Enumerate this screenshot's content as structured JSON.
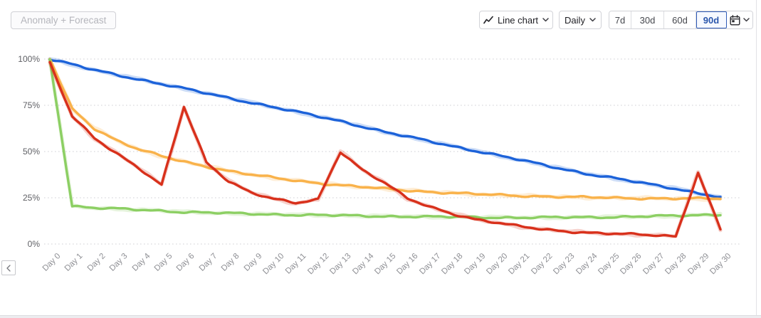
{
  "toolbar": {
    "anomaly_button": "Anomaly + Forecast",
    "chart_type_label": "Line chart",
    "chart_type_icon": "line-chart-icon",
    "granularity_label": "Daily",
    "range_options": [
      "7d",
      "30d",
      "60d",
      "90d"
    ],
    "selected_range": "90d",
    "calendar_icon": "calendar-icon",
    "chevron_icon": "chevron-down-icon"
  },
  "pager": {
    "icon": "chevron-left-icon"
  },
  "colors": {
    "selected_range_text": "#2b57ac",
    "selected_range_border": "#2f5bb7",
    "grid": "#cfcfd4",
    "axis_text": "#8e8f94",
    "y_axis_text": "#5f6065"
  },
  "chart_data": {
    "type": "line",
    "title": "",
    "xlabel": "",
    "ylabel": "",
    "ylim": [
      0,
      100
    ],
    "grid": "horizontal-dotted",
    "legend": "none",
    "style": "hand-drawn-sketch",
    "y_ticks": [
      {
        "value": 100,
        "label": "100%"
      },
      {
        "value": 75,
        "label": "75%"
      },
      {
        "value": 50,
        "label": "50%"
      },
      {
        "value": 25,
        "label": "25%"
      },
      {
        "value": 0,
        "label": "0%"
      }
    ],
    "categories": [
      "Day 0",
      "Day 1",
      "Day 2",
      "Day 3",
      "Day 4",
      "Day 5",
      "Day 6",
      "Day 7",
      "Day 8",
      "Day 9",
      "Day 10",
      "Day 11",
      "Day 12",
      "Day 13",
      "Day 14",
      "Day 15",
      "Day 16",
      "Day 17",
      "Day 18",
      "Day 19",
      "Day 20",
      "Day 21",
      "Day 22",
      "Day 23",
      "Day 24",
      "Day 25",
      "Day 26",
      "Day 27",
      "Day 28",
      "Day 29",
      "Day 30"
    ],
    "series": [
      {
        "name": "blue",
        "color": "#1c62d9",
        "values": [
          100,
          97,
          94,
          91.5,
          89,
          86.5,
          84,
          81.5,
          79,
          76.5,
          74,
          71.5,
          69,
          66.5,
          63.5,
          60.5,
          58,
          55.5,
          53,
          50.5,
          48,
          45.5,
          43,
          40.5,
          38,
          36,
          34,
          32,
          30,
          27.5,
          25.3
        ]
      },
      {
        "name": "orange",
        "color": "#f9b24a",
        "values": [
          100,
          73,
          62.5,
          56,
          51,
          47.5,
          44.5,
          42,
          39.5,
          37.5,
          35.8,
          34.3,
          33,
          31.8,
          30.8,
          29.8,
          29,
          28.2,
          27.6,
          27,
          26.5,
          26.1,
          25.8,
          25.5,
          25.2,
          25,
          24.8,
          24.7,
          24.6,
          24.5,
          24.5
        ]
      },
      {
        "name": "green",
        "color": "#8ccf63",
        "values": [
          100,
          20.5,
          19.5,
          19,
          18.5,
          18,
          17.3,
          17,
          16.6,
          16.3,
          16,
          15.8,
          15.6,
          15.4,
          15.2,
          15,
          14.9,
          14.7,
          14.6,
          14.5,
          14.4,
          14.3,
          14.3,
          14.4,
          14.5,
          14.6,
          14.8,
          15,
          15.2,
          15.6,
          16
        ]
      },
      {
        "name": "red",
        "color": "#d8301b",
        "values": [
          98,
          69,
          57,
          49,
          41,
          32,
          74,
          44,
          34,
          28,
          24.5,
          22,
          24,
          50,
          40,
          33,
          24.5,
          20,
          16.5,
          13.5,
          11.5,
          9.5,
          8,
          7,
          6.2,
          5.6,
          5.2,
          4.8,
          4.2,
          38.5,
          8
        ]
      }
    ]
  }
}
